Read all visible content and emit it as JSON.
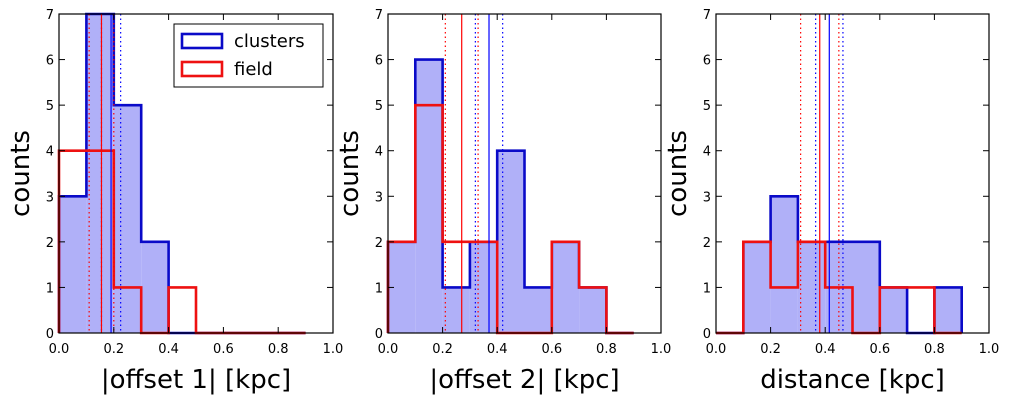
{
  "colors": {
    "clusters_edge": "#0a0ac8",
    "clusters_fill": "#b0b0f8",
    "field_edge": "#ee1111",
    "blue_line": "#0000ff",
    "red_line": "#ff0000"
  },
  "legend": {
    "clusters": "clusters",
    "field": "field"
  },
  "chart_data": [
    {
      "type": "histogram",
      "xlabel": "|offset 1| [kpc]",
      "ylabel": "counts",
      "xlim": [
        0.0,
        1.0
      ],
      "ylim": [
        0,
        7
      ],
      "xticks": [
        "0.0",
        "0.2",
        "0.4",
        "0.6",
        "0.8",
        "1.0"
      ],
      "yticks": [
        "0",
        "1",
        "2",
        "3",
        "4",
        "5",
        "6",
        "7"
      ],
      "bin_edges": [
        0.0,
        0.1,
        0.2,
        0.3,
        0.4,
        0.5,
        0.6,
        0.7,
        0.8,
        0.9
      ],
      "series": [
        {
          "name": "clusters",
          "values": [
            3,
            7,
            5,
            2,
            0,
            0,
            0,
            0,
            0
          ]
        },
        {
          "name": "field",
          "values": [
            4,
            4,
            1,
            0,
            1,
            0,
            0,
            0,
            0
          ]
        }
      ],
      "vlines": [
        {
          "series": "clusters",
          "style": "solid",
          "x": 0.19
        },
        {
          "series": "clusters",
          "style": "dotted",
          "x": 0.155
        },
        {
          "series": "clusters",
          "style": "dotted",
          "x": 0.225
        },
        {
          "series": "field",
          "style": "solid",
          "x": 0.155
        },
        {
          "series": "field",
          "style": "dotted",
          "x": 0.11
        },
        {
          "series": "field",
          "style": "dotted",
          "x": 0.2
        }
      ],
      "legend": true,
      "legend_position": "top-right"
    },
    {
      "type": "histogram",
      "xlabel": "|offset 2| [kpc]",
      "ylabel": "counts",
      "xlim": [
        0.0,
        1.0
      ],
      "ylim": [
        0,
        7
      ],
      "xticks": [
        "0.0",
        "0.2",
        "0.4",
        "0.6",
        "0.8",
        "1.0"
      ],
      "yticks": [
        "0",
        "1",
        "2",
        "3",
        "4",
        "5",
        "6",
        "7"
      ],
      "bin_edges": [
        0.0,
        0.1,
        0.2,
        0.3,
        0.4,
        0.5,
        0.6,
        0.7,
        0.8,
        0.9
      ],
      "series": [
        {
          "name": "clusters",
          "values": [
            2,
            6,
            1,
            2,
            4,
            1,
            2,
            1,
            0
          ]
        },
        {
          "name": "field",
          "values": [
            2,
            5,
            2,
            2,
            0,
            0,
            2,
            1,
            0
          ]
        }
      ],
      "vlines": [
        {
          "series": "clusters",
          "style": "solid",
          "x": 0.37
        },
        {
          "series": "clusters",
          "style": "dotted",
          "x": 0.32
        },
        {
          "series": "clusters",
          "style": "dotted",
          "x": 0.42
        },
        {
          "series": "field",
          "style": "solid",
          "x": 0.27
        },
        {
          "series": "field",
          "style": "dotted",
          "x": 0.21
        },
        {
          "series": "field",
          "style": "dotted",
          "x": 0.33
        }
      ],
      "legend": false
    },
    {
      "type": "histogram",
      "xlabel": "distance [kpc]",
      "ylabel": "counts",
      "xlim": [
        0.0,
        1.0
      ],
      "ylim": [
        0,
        7
      ],
      "xticks": [
        "0.0",
        "0.2",
        "0.4",
        "0.6",
        "0.8",
        "1.0"
      ],
      "yticks": [
        "0",
        "1",
        "2",
        "3",
        "4",
        "5",
        "6",
        "7"
      ],
      "bin_edges": [
        0.0,
        0.1,
        0.2,
        0.3,
        0.4,
        0.5,
        0.6,
        0.7,
        0.8,
        0.9
      ],
      "series": [
        {
          "name": "clusters",
          "values": [
            0,
            2,
            3,
            2,
            2,
            2,
            1,
            0,
            1
          ]
        },
        {
          "name": "field",
          "values": [
            0,
            2,
            1,
            2,
            1,
            0,
            1,
            1,
            0
          ]
        }
      ],
      "vlines": [
        {
          "series": "clusters",
          "style": "solid",
          "x": 0.415
        },
        {
          "series": "clusters",
          "style": "dotted",
          "x": 0.365
        },
        {
          "series": "clusters",
          "style": "dotted",
          "x": 0.465
        },
        {
          "series": "field",
          "style": "solid",
          "x": 0.38
        },
        {
          "series": "field",
          "style": "dotted",
          "x": 0.31
        },
        {
          "series": "field",
          "style": "dotted",
          "x": 0.45
        }
      ],
      "legend": false
    }
  ]
}
